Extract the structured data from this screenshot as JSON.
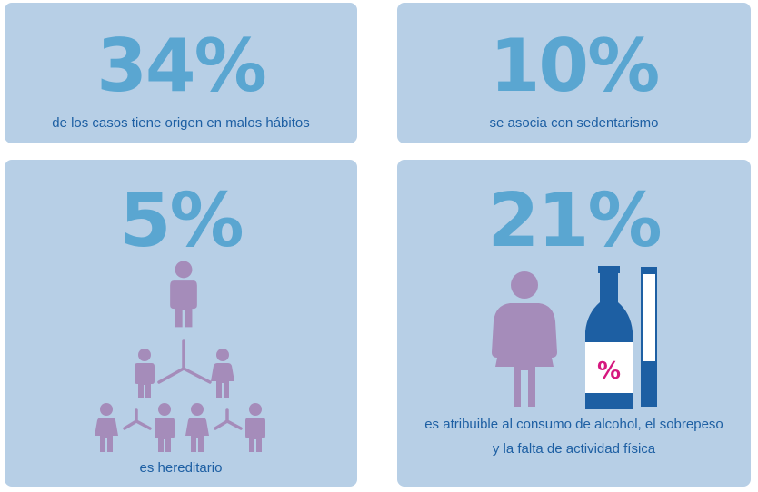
{
  "cards": [
    {
      "value": "34%",
      "caption": "de los casos tiene origen en malos hábitos"
    },
    {
      "value": "10%",
      "caption": "se asocia con sedentarismo"
    },
    {
      "value": "5%",
      "caption": "es hereditario"
    },
    {
      "value": "21%",
      "caption_line1": "es atribuible al consumo de alcohol, el sobrepeso",
      "caption_line2": "y la falta de actividad física"
    }
  ],
  "bottle_label": "%",
  "colors": {
    "card_bg": "#b7cfe6",
    "big_number": "#5aa6d1",
    "caption_text": "#1d5fa3",
    "figure": "#a58cba",
    "bottle": "#1d5fa3",
    "bottle_label": "#d6187f"
  },
  "icons": [
    "family-tree-icon",
    "overweight-person-icon",
    "bottle-icon",
    "glass-level-icon"
  ]
}
